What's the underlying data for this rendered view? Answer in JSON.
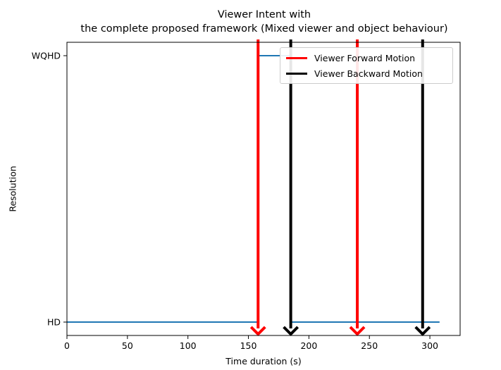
{
  "chart_data": {
    "type": "line",
    "title_lines": [
      "Viewer Intent with",
      "the complete proposed framework (Mixed viewer and object behaviour)"
    ],
    "xlabel": "Time duration (s)",
    "ylabel": "Resolution",
    "xlim": [
      0,
      325
    ],
    "x_ticks": [
      0,
      50,
      100,
      150,
      200,
      250,
      300
    ],
    "y_categories": [
      "HD",
      "WQHD"
    ],
    "resolution_series": {
      "color": "#1f77b4",
      "points": [
        [
          0,
          "HD"
        ],
        [
          158,
          "HD"
        ],
        [
          158,
          "WQHD"
        ],
        [
          185,
          "WQHD"
        ],
        [
          185,
          "HD"
        ],
        [
          308,
          "HD"
        ]
      ]
    },
    "legend": [
      {
        "label": "Viewer Forward Motion",
        "color": "#ff0000"
      },
      {
        "label": "Viewer Backward Motion",
        "color": "#000000"
      }
    ],
    "legend_position": "top-right",
    "events": [
      {
        "time": 158,
        "type": "forward"
      },
      {
        "time": 185,
        "type": "backward"
      },
      {
        "time": 240,
        "type": "forward"
      },
      {
        "time": 294,
        "type": "backward"
      }
    ],
    "grid": false
  }
}
